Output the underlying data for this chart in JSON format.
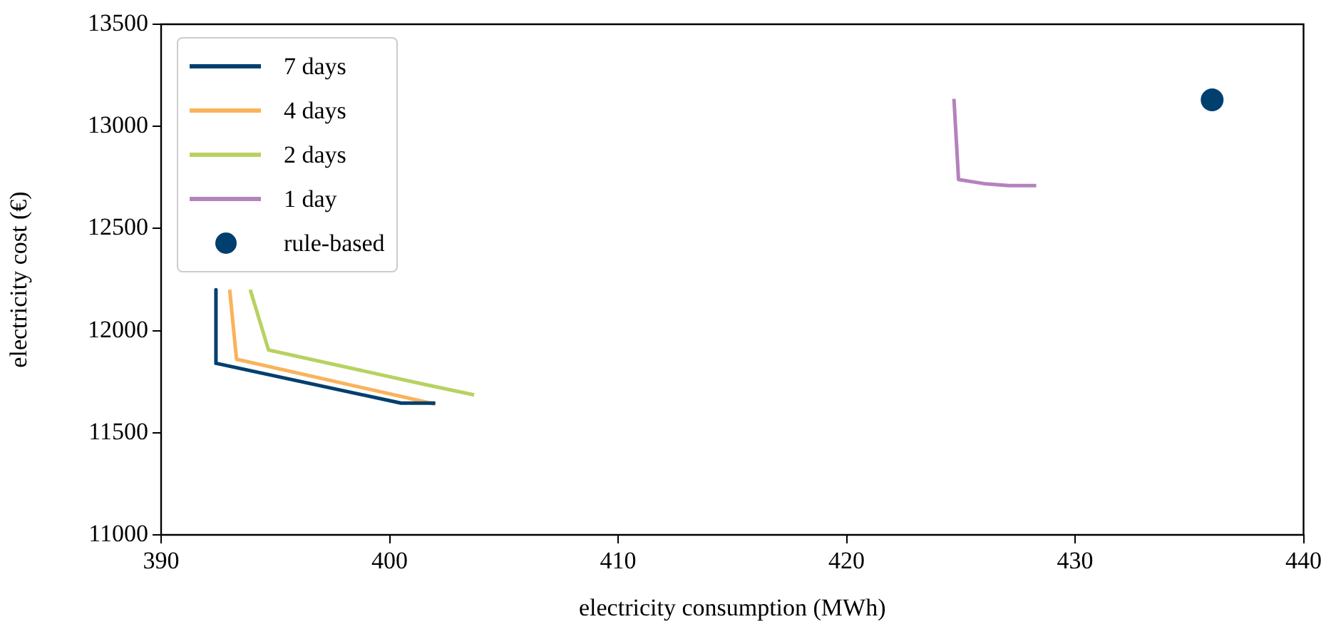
{
  "chart_data": {
    "type": "line",
    "xlabel": "electricity consumption (MWh)",
    "ylabel": "electricity cost (€)",
    "xlim": [
      390,
      440
    ],
    "xticks": [
      390,
      400,
      410,
      420,
      430,
      440
    ],
    "ylim": [
      11000,
      13500
    ],
    "yticks": [
      11000,
      11500,
      12000,
      12500,
      13000,
      13500
    ],
    "grid": false,
    "legend": "top left",
    "marker": "none",
    "line_style": "solid",
    "series": [
      {
        "name": "7 days",
        "color": "#003f6e",
        "x": [
          392.4,
          392.4,
          400.5,
          402.0
        ],
        "values": [
          12200,
          11840,
          11645,
          11645
        ]
      },
      {
        "name": "4 days",
        "color": "#f9b35b",
        "x": [
          393.0,
          393.3,
          402.0
        ],
        "values": [
          12200,
          11860,
          11640
        ]
      },
      {
        "name": "2 days",
        "color": "#b7d262",
        "x": [
          393.9,
          394.7,
          401.6,
          403.7
        ],
        "values": [
          12200,
          11905,
          11735,
          11685
        ]
      },
      {
        "name": "1 day",
        "color": "#b482bd",
        "x": [
          424.7,
          424.9,
          426.0,
          427.1,
          428.3
        ],
        "values": [
          13135,
          12740,
          12720,
          12710,
          12710
        ]
      },
      {
        "name": "rule-based",
        "type": "scatter",
        "marker": "circle",
        "color": "#003f6e",
        "x": [
          436.0
        ],
        "values": [
          13130
        ]
      }
    ]
  }
}
